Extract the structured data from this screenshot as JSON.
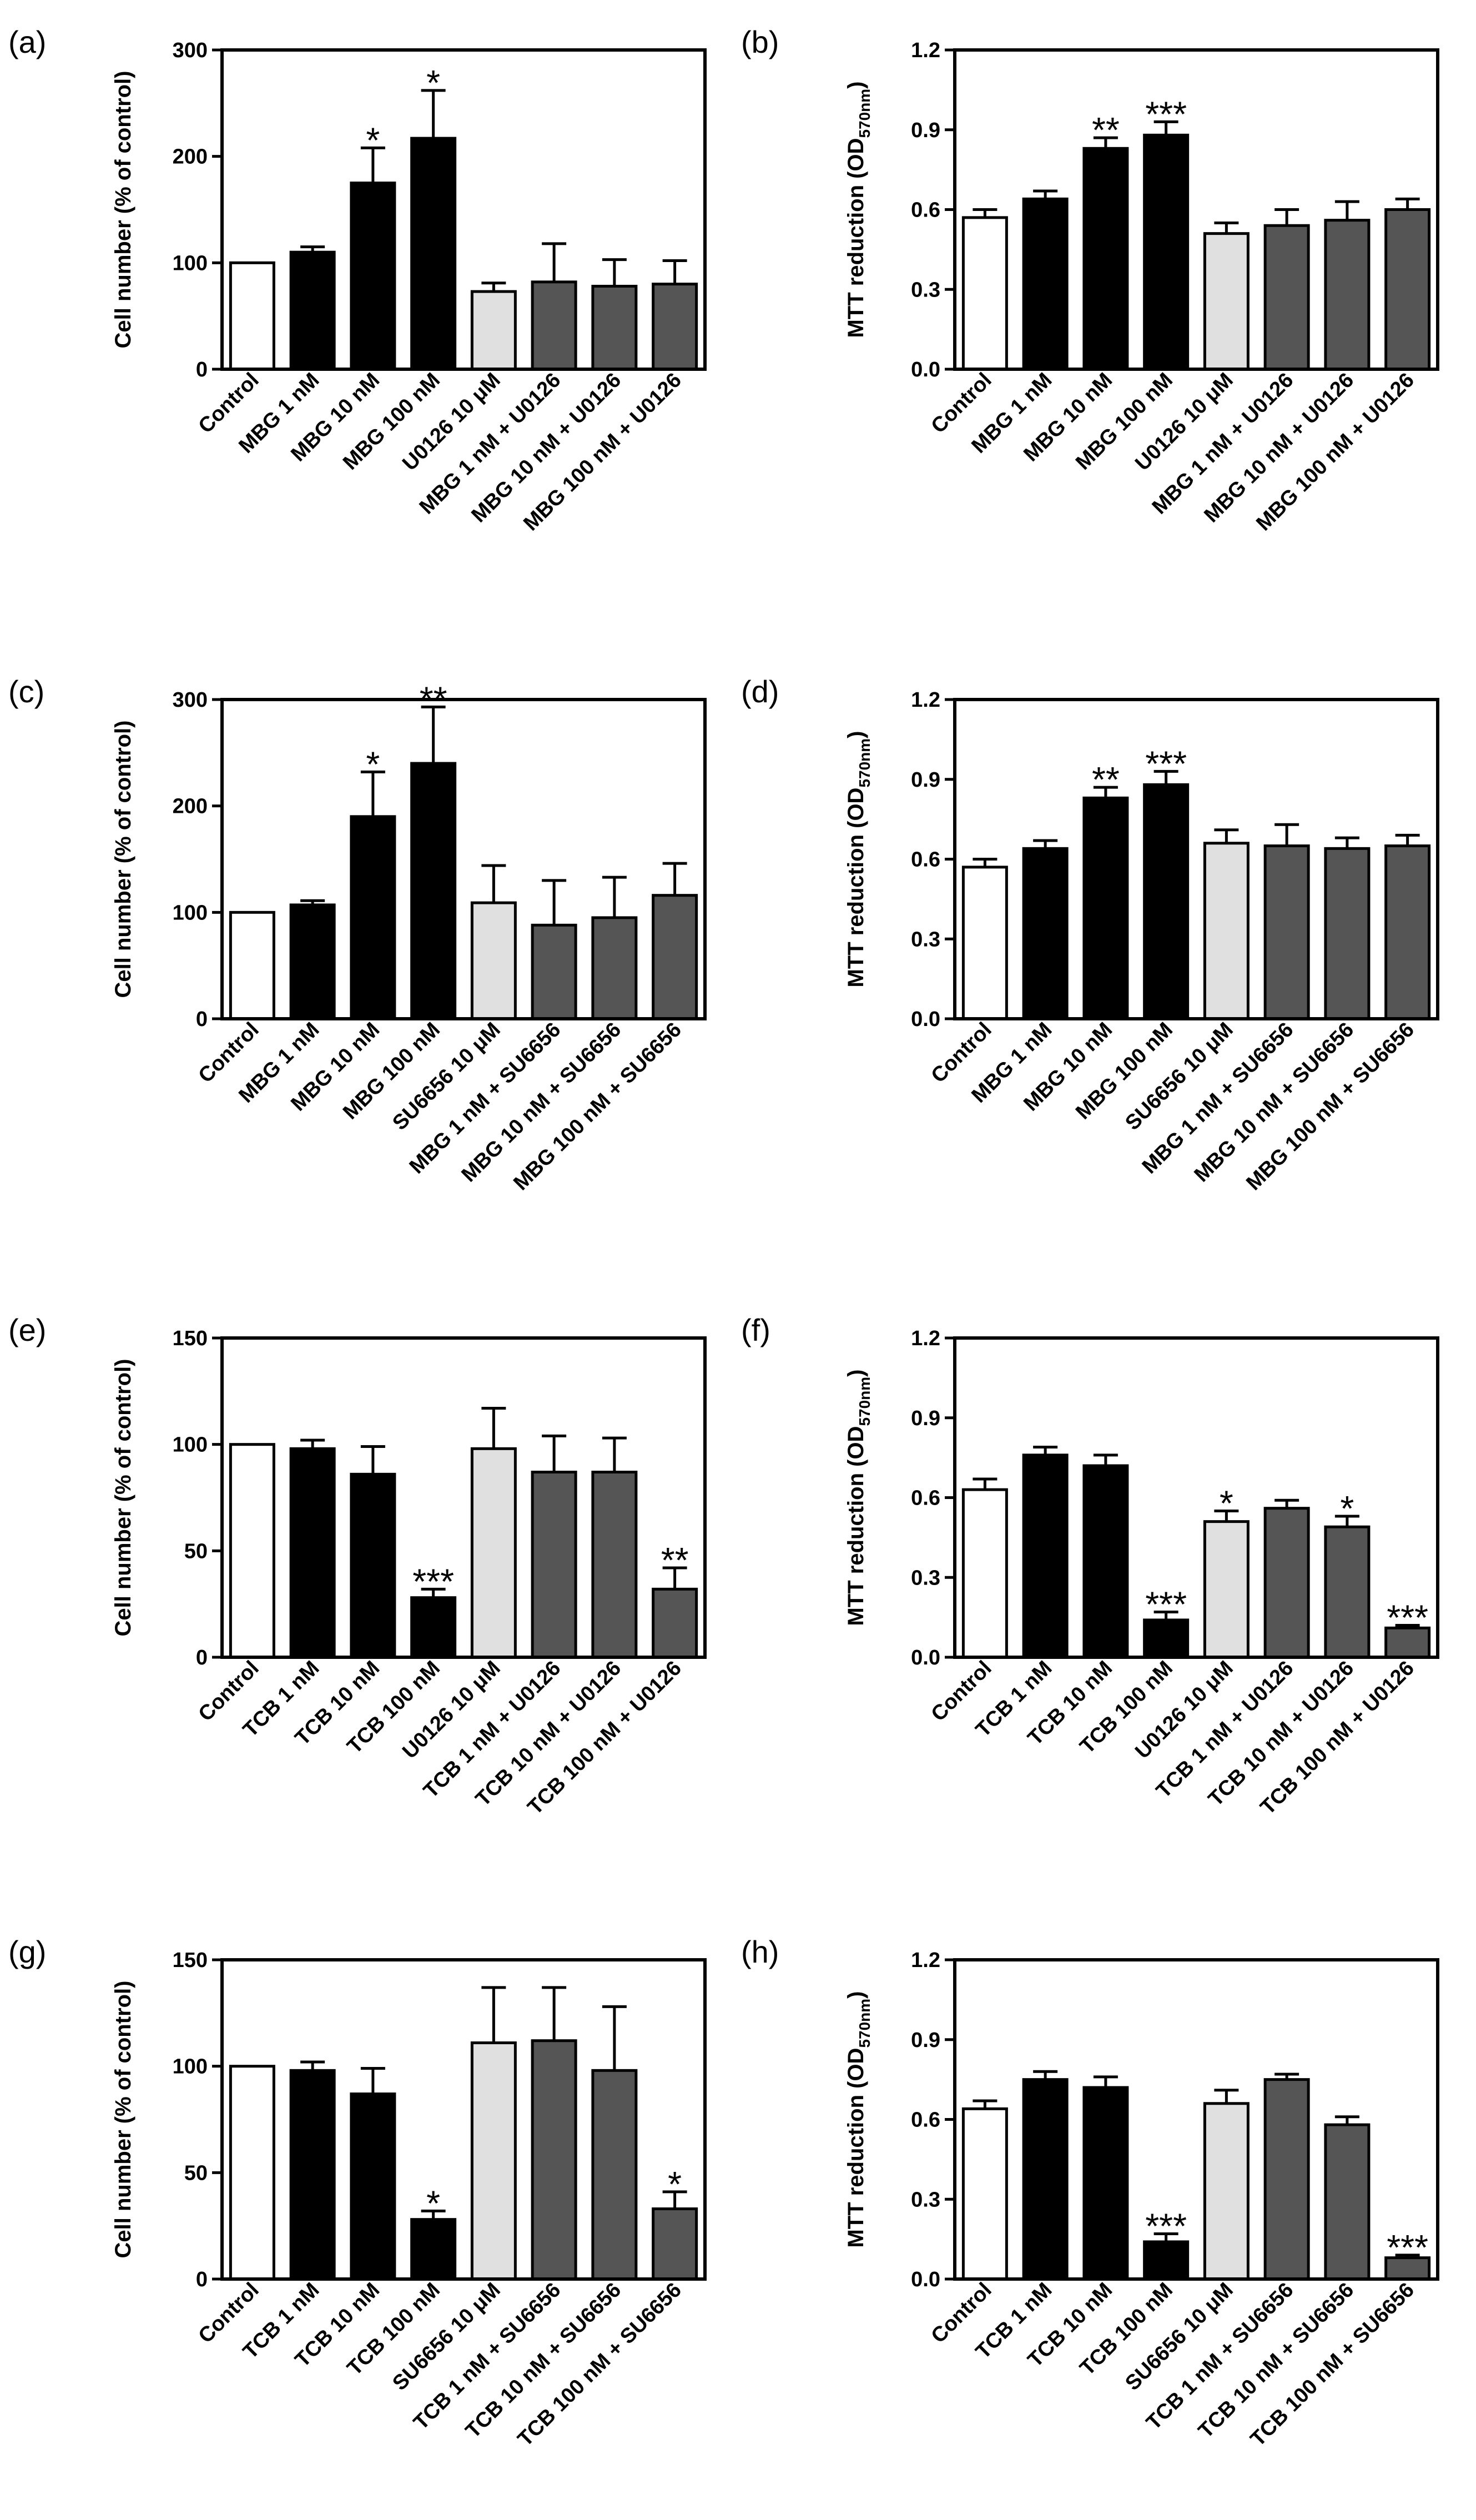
{
  "colors": {
    "control": "#ffffff",
    "treatment": "#000000",
    "inhibitor": "#e0e0e0",
    "combo": "#555555",
    "axis": "#000000"
  },
  "chart_data": [
    {
      "type": "bar",
      "panel": "(a)",
      "ylabel": "Cell number (% of control)",
      "ylabel_sub": "",
      "ylim": [
        0,
        300
      ],
      "ticks": [
        0,
        100,
        200,
        300
      ],
      "tick_labels": [
        "0",
        "100",
        "200",
        "300"
      ],
      "categories": [
        "Control",
        "MBG 1 nM",
        "MBG 10 nM",
        "MBG 100 nM",
        "U0126 10 μM",
        "MBG 1 nM + U0126",
        "MBG 10 nM + U0126",
        "MBG 100 nM + U0126"
      ],
      "values": [
        100,
        110,
        175,
        217,
        73,
        82,
        78,
        80
      ],
      "errors": [
        0,
        5,
        33,
        45,
        8,
        36,
        25,
        22
      ],
      "groups": [
        "control",
        "treatment",
        "treatment",
        "treatment",
        "inhibitor",
        "combo",
        "combo",
        "combo"
      ],
      "significance": [
        "",
        "",
        "*",
        "*",
        "",
        "",
        "",
        ""
      ]
    },
    {
      "type": "bar",
      "panel": "(b)",
      "ylabel": "MTT reduction (OD",
      "ylabel_sub": "570nm",
      "ylabel_end": ")",
      "ylim": [
        0,
        1.2
      ],
      "ticks": [
        0,
        0.3,
        0.6,
        0.9,
        1.2
      ],
      "tick_labels": [
        "0.0",
        "0.3",
        "0.6",
        "0.9",
        "1.2"
      ],
      "categories": [
        "Control",
        "MBG 1 nM",
        "MBG 10 nM",
        "MBG 100 nM",
        "U0126 10 μM",
        "MBG 1 nM + U0126",
        "MBG 10 nM + U0126",
        "MBG 100 nM + U0126"
      ],
      "values": [
        0.57,
        0.64,
        0.83,
        0.88,
        0.51,
        0.54,
        0.56,
        0.6
      ],
      "errors": [
        0.03,
        0.03,
        0.04,
        0.05,
        0.04,
        0.06,
        0.07,
        0.04
      ],
      "groups": [
        "control",
        "treatment",
        "treatment",
        "treatment",
        "inhibitor",
        "combo",
        "combo",
        "combo"
      ],
      "significance": [
        "",
        "",
        "**",
        "***",
        "",
        "",
        "",
        ""
      ]
    },
    {
      "type": "bar",
      "panel": "(c)",
      "ylabel": "Cell number (% of control)",
      "ylabel_sub": "",
      "ylim": [
        0,
        300
      ],
      "ticks": [
        0,
        100,
        200,
        300
      ],
      "tick_labels": [
        "0",
        "100",
        "200",
        "300"
      ],
      "categories": [
        "Control",
        "MBG 1 nM",
        "MBG 10 nM",
        "MBG 100 nM",
        "SU6656 10 μM",
        "MBG 1 nM + SU6656",
        "MBG 10 nM + SU6656",
        "MBG 100 nM + SU6656"
      ],
      "values": [
        100,
        107,
        190,
        240,
        109,
        88,
        95,
        116
      ],
      "errors": [
        0,
        4,
        42,
        53,
        35,
        42,
        38,
        30
      ],
      "groups": [
        "control",
        "treatment",
        "treatment",
        "treatment",
        "inhibitor",
        "combo",
        "combo",
        "combo"
      ],
      "significance": [
        "",
        "",
        "*",
        "**",
        "",
        "",
        "",
        ""
      ]
    },
    {
      "type": "bar",
      "panel": "(d)",
      "ylabel": "MTT reduction (OD",
      "ylabel_sub": "570nm",
      "ylabel_end": ")",
      "ylim": [
        0,
        1.2
      ],
      "ticks": [
        0,
        0.3,
        0.6,
        0.9,
        1.2
      ],
      "tick_labels": [
        "0.0",
        "0.3",
        "0.6",
        "0.9",
        "1.2"
      ],
      "categories": [
        "Control",
        "MBG 1 nM",
        "MBG 10 nM",
        "MBG 100 nM",
        "SU6656 10 μM",
        "MBG 1 nM + SU6656",
        "MBG 10 nM + SU6656",
        "MBG 100 nM + SU6656"
      ],
      "values": [
        0.57,
        0.64,
        0.83,
        0.88,
        0.66,
        0.65,
        0.64,
        0.65
      ],
      "errors": [
        0.03,
        0.03,
        0.04,
        0.05,
        0.05,
        0.08,
        0.04,
        0.04
      ],
      "groups": [
        "control",
        "treatment",
        "treatment",
        "treatment",
        "inhibitor",
        "combo",
        "combo",
        "combo"
      ],
      "significance": [
        "",
        "",
        "**",
        "***",
        "",
        "",
        "",
        ""
      ]
    },
    {
      "type": "bar",
      "panel": "(e)",
      "ylabel": "Cell number (% of control)",
      "ylabel_sub": "",
      "ylim": [
        0,
        150
      ],
      "ticks": [
        0,
        50,
        100,
        150
      ],
      "tick_labels": [
        "0",
        "50",
        "100",
        "150"
      ],
      "categories": [
        "Control",
        "TCB 1 nM",
        "TCB 10 nM",
        "TCB 100 nM",
        "U0126 10 μM",
        "TCB 1 nM + U0126",
        "TCB 10 nM + U0126",
        "TCB 100 nM + U0126"
      ],
      "values": [
        100,
        98,
        86,
        28,
        98,
        87,
        87,
        32
      ],
      "errors": [
        0,
        4,
        13,
        4,
        19,
        17,
        16,
        10
      ],
      "groups": [
        "control",
        "treatment",
        "treatment",
        "treatment",
        "inhibitor",
        "combo",
        "combo",
        "combo"
      ],
      "significance": [
        "",
        "",
        "",
        "***",
        "",
        "",
        "",
        "**"
      ]
    },
    {
      "type": "bar",
      "panel": "(f)",
      "ylabel": "MTT reduction (OD",
      "ylabel_sub": "570nm",
      "ylabel_end": ")",
      "ylim": [
        0,
        1.2
      ],
      "ticks": [
        0,
        0.3,
        0.6,
        0.9,
        1.2
      ],
      "tick_labels": [
        "0.0",
        "0.3",
        "0.6",
        "0.9",
        "1.2"
      ],
      "categories": [
        "Control",
        "TCB 1 nM",
        "TCB 10 nM",
        "TCB 100 nM",
        "U0126 10 μM",
        "TCB 1 nM + U0126",
        "TCB 10 nM + U0126",
        "TCB 100 nM + U0126"
      ],
      "values": [
        0.63,
        0.76,
        0.72,
        0.14,
        0.51,
        0.56,
        0.49,
        0.11
      ],
      "errors": [
        0.04,
        0.03,
        0.04,
        0.03,
        0.04,
        0.03,
        0.04,
        0.01
      ],
      "groups": [
        "control",
        "treatment",
        "treatment",
        "treatment",
        "inhibitor",
        "combo",
        "combo",
        "combo"
      ],
      "significance": [
        "",
        "",
        "",
        "***",
        "*",
        "",
        "*",
        "***"
      ]
    },
    {
      "type": "bar",
      "panel": "(g)",
      "ylabel": "Cell number (% of control)",
      "ylabel_sub": "",
      "ylim": [
        0,
        150
      ],
      "ticks": [
        0,
        50,
        100,
        150
      ],
      "tick_labels": [
        "0",
        "50",
        "100",
        "150"
      ],
      "categories": [
        "Control",
        "TCB 1 nM",
        "TCB 10 nM",
        "TCB 100 nM",
        "SU6656 10 μM",
        "TCB 1 nM + SU6656",
        "TCB 10 nM + SU6656",
        "TCB 100 nM + SU6656"
      ],
      "values": [
        100,
        98,
        87,
        28,
        111,
        112,
        98,
        33
      ],
      "errors": [
        0,
        4,
        12,
        4,
        26,
        25,
        30,
        8
      ],
      "groups": [
        "control",
        "treatment",
        "treatment",
        "treatment",
        "inhibitor",
        "combo",
        "combo",
        "combo"
      ],
      "significance": [
        "",
        "",
        "",
        "*",
        "",
        "",
        "",
        "*"
      ]
    },
    {
      "type": "bar",
      "panel": "(h)",
      "ylabel": "MTT reduction (OD",
      "ylabel_sub": "570nm",
      "ylabel_end": ")",
      "ylim": [
        0,
        1.2
      ],
      "ticks": [
        0,
        0.3,
        0.6,
        0.9,
        1.2
      ],
      "tick_labels": [
        "0.0",
        "0.3",
        "0.6",
        "0.9",
        "1.2"
      ],
      "categories": [
        "Control",
        "TCB 1 nM",
        "TCB 10 nM",
        "TCB 100 nM",
        "SU6656 10 μM",
        "TCB 1 nM + SU6656",
        "TCB 10 nM + SU6656",
        "TCB 100 nM + SU6656"
      ],
      "values": [
        0.64,
        0.75,
        0.72,
        0.14,
        0.66,
        0.75,
        0.58,
        0.08
      ],
      "errors": [
        0.03,
        0.03,
        0.04,
        0.03,
        0.05,
        0.02,
        0.03,
        0.01
      ],
      "groups": [
        "control",
        "treatment",
        "treatment",
        "treatment",
        "inhibitor",
        "combo",
        "combo",
        "combo"
      ],
      "significance": [
        "",
        "",
        "",
        "***",
        "",
        "",
        "",
        "***"
      ]
    }
  ]
}
